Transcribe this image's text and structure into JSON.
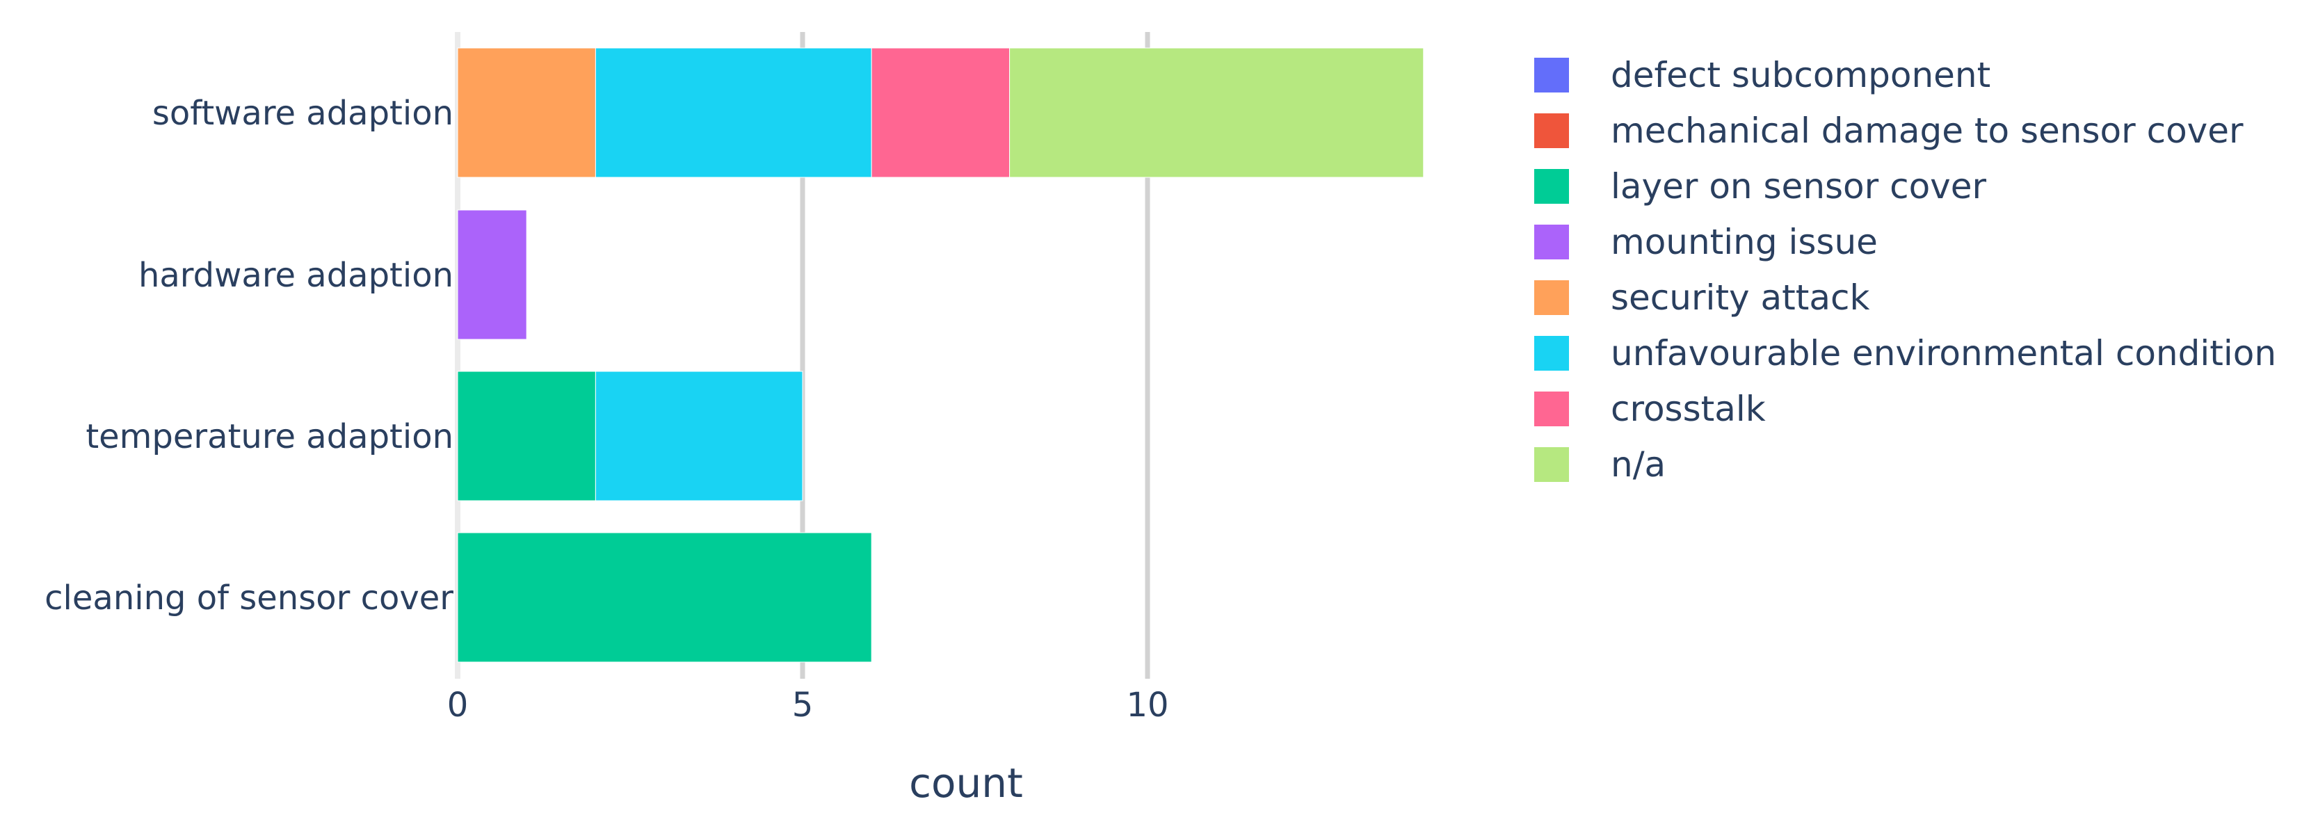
{
  "chart_data": {
    "type": "bar",
    "orientation": "horizontal",
    "barmode": "stack",
    "categories": [
      "software adaption",
      "hardware adaption",
      "temperature adaption",
      "cleaning of sensor cover"
    ],
    "series": [
      {
        "name": "defect subcomponent",
        "color": "#636efa",
        "values": [
          0,
          0,
          0,
          0
        ]
      },
      {
        "name": "mechanical damage to sensor cover",
        "color": "#ef553b",
        "values": [
          0,
          0,
          0,
          0
        ]
      },
      {
        "name": "layer on sensor cover",
        "color": "#00cc96",
        "values": [
          0,
          0,
          2,
          6
        ]
      },
      {
        "name": "mounting issue",
        "color": "#ab63fa",
        "values": [
          0,
          1,
          0,
          0
        ]
      },
      {
        "name": "security attack",
        "color": "#ffa15a",
        "values": [
          2,
          0,
          0,
          0
        ]
      },
      {
        "name": "unfavourable environmental condition",
        "color": "#19d3f3",
        "values": [
          4,
          0,
          3,
          0
        ]
      },
      {
        "name": "crosstalk",
        "color": "#ff6692",
        "values": [
          2,
          0,
          0,
          0
        ]
      },
      {
        "name": "n/a",
        "color": "#b6e880",
        "values": [
          6,
          0,
          0,
          0
        ]
      }
    ],
    "xlabel": "count",
    "ylabel": "",
    "xlim": [
      0,
      14.8
    ],
    "xticks": [
      0,
      5,
      10
    ],
    "grid": true,
    "legend_position": "right"
  }
}
